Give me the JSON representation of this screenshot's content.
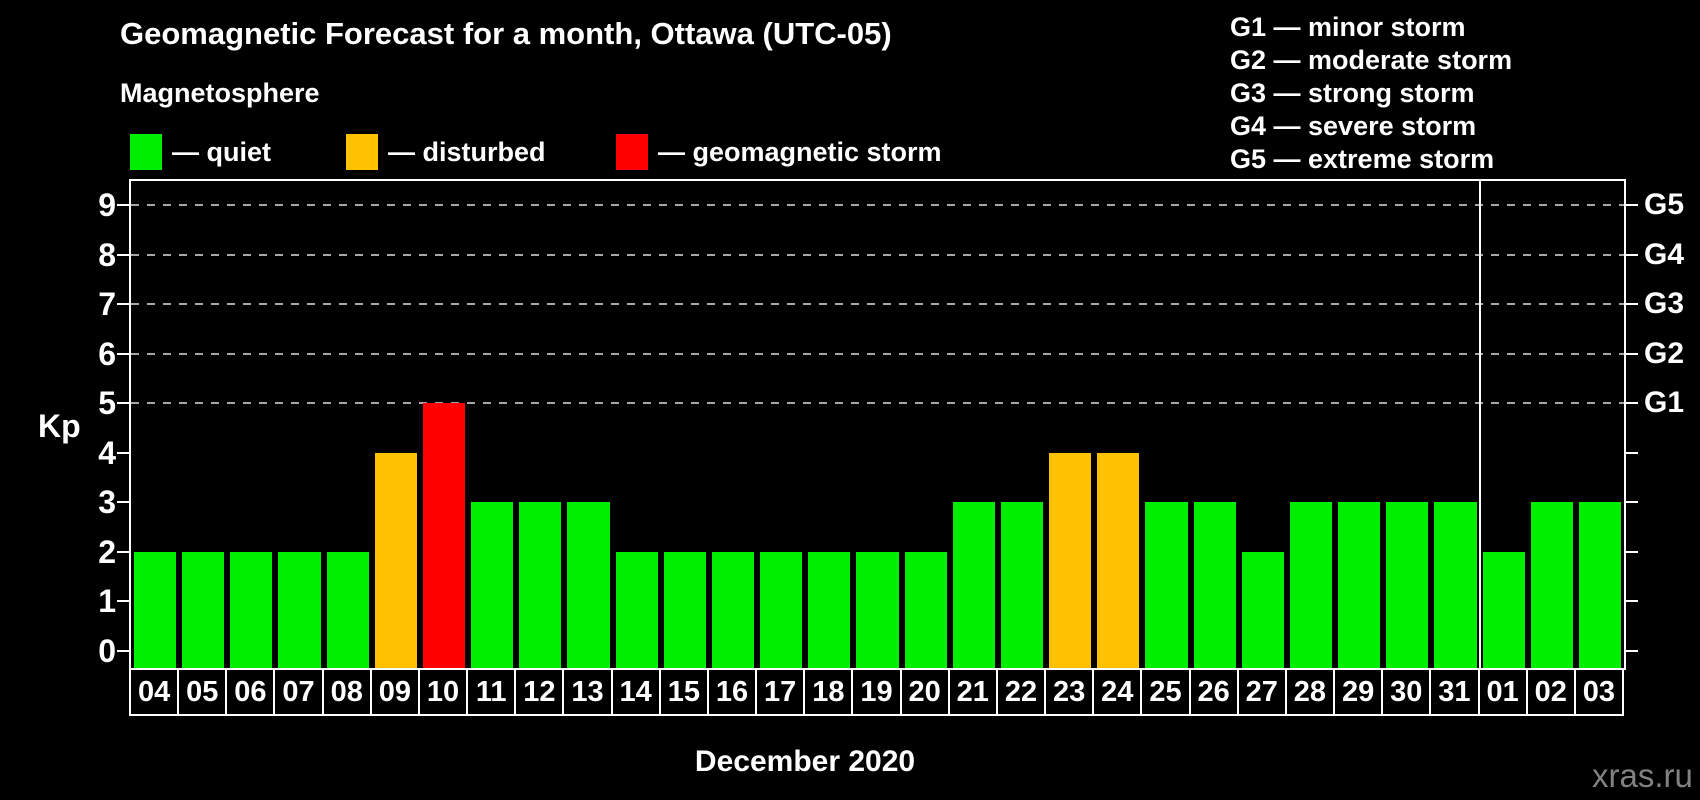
{
  "title": "Geomagnetic Forecast for a month, Ottawa (UTC-05)",
  "legend": {
    "heading": "Magnetosphere",
    "items": [
      {
        "key": "quiet",
        "label": "— quiet",
        "color": "#00ee00",
        "x": 130
      },
      {
        "key": "disturbed",
        "label": "— disturbed",
        "color": "#ffc100",
        "x": 346
      },
      {
        "key": "storm",
        "label": "— geomagnetic storm",
        "color": "#ff0000",
        "x": 616
      }
    ]
  },
  "storm_scale_legend": [
    "G1 — minor storm",
    "G2 — moderate storm",
    "G3 — strong storm",
    "G4 — severe storm",
    "G5 — extreme storm"
  ],
  "axis": {
    "y_label": "Kp",
    "x_label": "December 2020"
  },
  "watermark": "xras.ru",
  "chart_data": {
    "type": "bar",
    "title": "Geomagnetic Forecast for a month, Ottawa (UTC-05)",
    "xlabel": "December 2020",
    "ylabel": "Kp",
    "ylim": [
      0,
      9
    ],
    "grid": "dashed horizontal lines at Kp 5-9 only",
    "legend_position": "top",
    "categories": [
      "04",
      "05",
      "06",
      "07",
      "08",
      "09",
      "10",
      "11",
      "12",
      "13",
      "14",
      "15",
      "16",
      "17",
      "18",
      "19",
      "20",
      "21",
      "22",
      "23",
      "24",
      "25",
      "26",
      "27",
      "28",
      "29",
      "30",
      "31",
      "01",
      "02",
      "03"
    ],
    "values": [
      2,
      2,
      2,
      2,
      2,
      4,
      5,
      3,
      3,
      3,
      2,
      2,
      2,
      2,
      2,
      2,
      2,
      3,
      3,
      4,
      4,
      3,
      3,
      2,
      3,
      3,
      3,
      3,
      2,
      3,
      3
    ],
    "statuses": [
      "quiet",
      "quiet",
      "quiet",
      "quiet",
      "quiet",
      "disturbed",
      "storm",
      "quiet",
      "quiet",
      "quiet",
      "quiet",
      "quiet",
      "quiet",
      "quiet",
      "quiet",
      "quiet",
      "quiet",
      "quiet",
      "quiet",
      "disturbed",
      "disturbed",
      "quiet",
      "quiet",
      "quiet",
      "quiet",
      "quiet",
      "quiet",
      "quiet",
      "quiet",
      "quiet",
      "quiet"
    ],
    "status_colors": {
      "quiet": "#00ee00",
      "disturbed": "#ffc100",
      "storm": "#ff0000"
    },
    "y_ticks": [
      0,
      1,
      2,
      3,
      4,
      5,
      6,
      7,
      8,
      9
    ],
    "gridlines_at": [
      5,
      6,
      7,
      8,
      9
    ],
    "right_axis": [
      {
        "kp": 5,
        "label": "G1"
      },
      {
        "kp": 6,
        "label": "G2"
      },
      {
        "kp": 7,
        "label": "G3"
      },
      {
        "kp": 8,
        "label": "G4"
      },
      {
        "kp": 9,
        "label": "G5"
      }
    ],
    "month_separator_after_index": 27
  }
}
